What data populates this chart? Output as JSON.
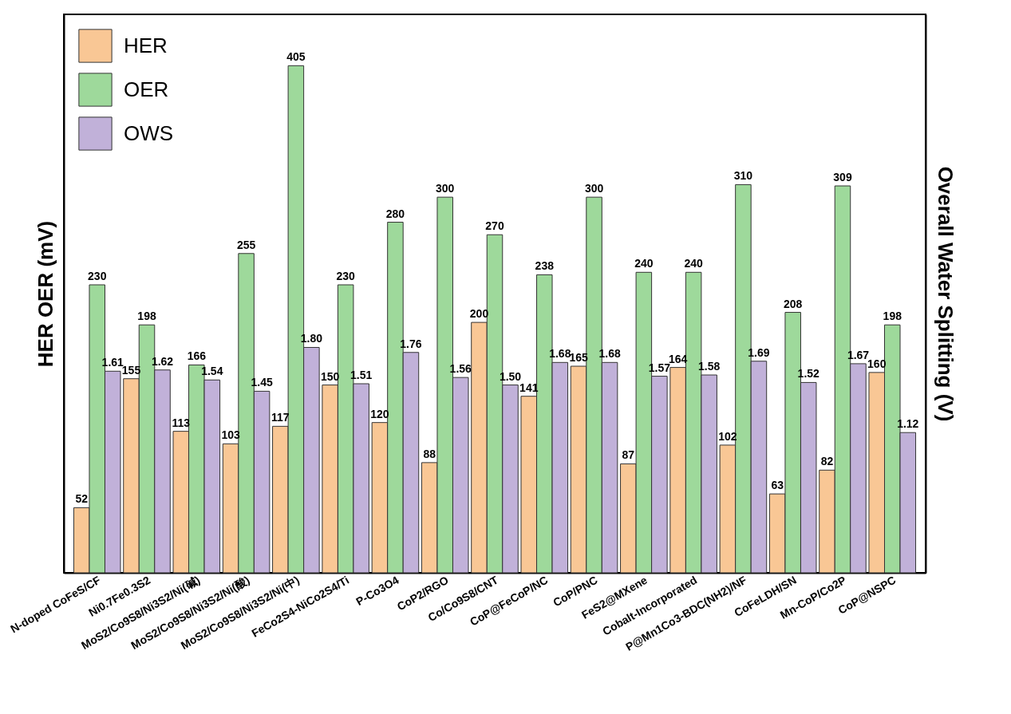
{
  "chart_data": {
    "type": "bar",
    "ylabel": "HER OER (mV)",
    "y2label": "Overall Water Splitting (V)",
    "categories": [
      "N-doped CoFeS/CF",
      "Ni0.7Fe0.3S2",
      "MoS2/Co9S8/Ni3S2/Ni(碱)",
      "MoS2/Co9S8/Ni3S2/Ni(酸)",
      "MoS2/Co9S8/Ni3S2/Ni(中)",
      "FeCo2S4-NiCo2S4/Ti",
      "P-Co3O4",
      "CoP2/RGO",
      "Co/Co9S8/CNT",
      "CoP@FeCoP/NC",
      "CoP/PNC",
      "FeS2@MXene",
      "Cobalt-Incorporated",
      "P@Mn1Co3-BDC(NH2)/NF",
      "CoFeLDH/SN",
      "Mn-CoP/Co2P",
      "CoP@NSPC"
    ],
    "series": [
      {
        "name": "HER",
        "color": "#f9c795",
        "values": [
          52,
          155,
          113,
          103,
          117,
          150,
          120,
          88,
          200,
          141,
          165,
          87,
          164,
          102,
          63,
          82,
          160
        ]
      },
      {
        "name": "OER",
        "color": "#9ed99b",
        "values": [
          230,
          198,
          166,
          255,
          405,
          230,
          280,
          300,
          270,
          238,
          300,
          240,
          240,
          310,
          208,
          309,
          198
        ]
      },
      {
        "name": "OWS",
        "color": "#c1b1d9",
        "axis": "y2",
        "values": [
          1.61,
          1.62,
          1.54,
          1.45,
          1.8,
          1.51,
          1.76,
          1.56,
          1.5,
          1.68,
          1.68,
          1.57,
          1.58,
          1.69,
          1.52,
          1.67,
          1.12
        ],
        "value_labels": [
          "1.61",
          "1.62",
          "1.54",
          "1.45",
          "1.80",
          "1.51",
          "1.76",
          "1.56",
          "1.50",
          "1.68",
          "1.68",
          "1.57",
          "1.58",
          "1.69",
          "1.52",
          "1.67",
          "1.12"
        ]
      }
    ],
    "ylim": [
      0,
      446
    ],
    "y2lim": [
      0,
      4.46
    ],
    "tick_labels": "x",
    "data_labels": true,
    "legend": "top left"
  }
}
